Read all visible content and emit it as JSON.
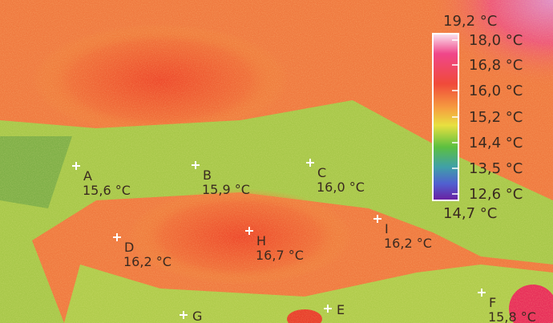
{
  "scale": {
    "max_label": "19,2 °C",
    "min_label": "14,7 °C",
    "labels": [
      "18,0 °C",
      "16,8 °C",
      "16,0 °C",
      "15,2 °C",
      "14,4 °C",
      "13,5 °C",
      "12,6 °C"
    ]
  },
  "points": [
    {
      "id": "A",
      "temp": "15,6 °C"
    },
    {
      "id": "B",
      "temp": "15,9 °C"
    },
    {
      "id": "C",
      "temp": "16,0 °C"
    },
    {
      "id": "D",
      "temp": "16,2 °C"
    },
    {
      "id": "H",
      "temp": "16,7 °C"
    },
    {
      "id": "I",
      "temp": "16,2 °C"
    },
    {
      "id": "F",
      "temp": "15,8 °C"
    },
    {
      "id": "G"
    },
    {
      "id": "E"
    }
  ]
}
